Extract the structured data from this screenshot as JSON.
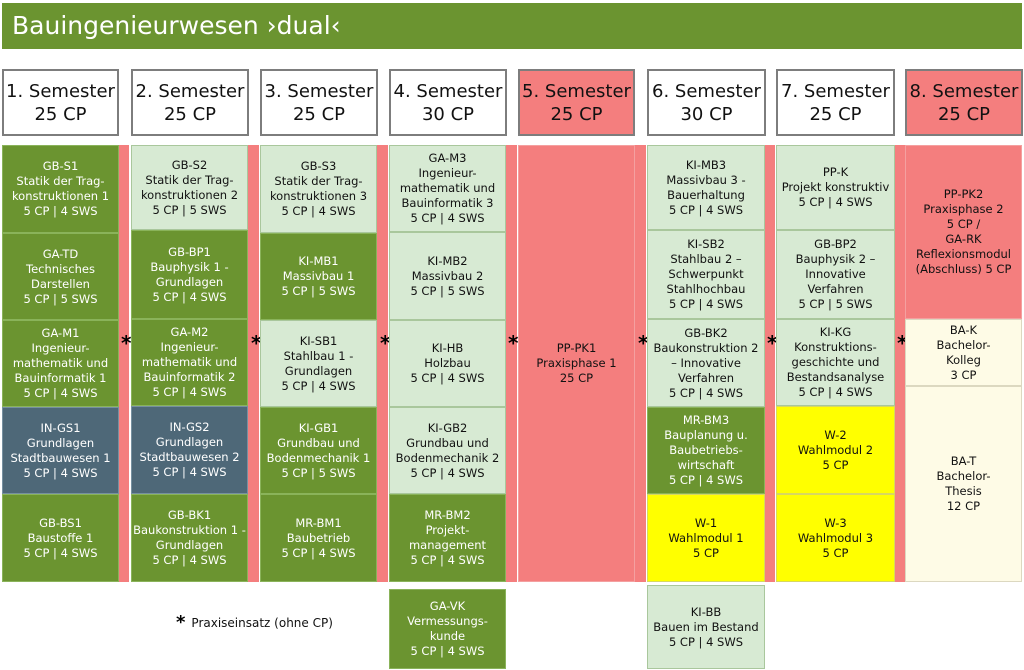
{
  "title": "Bauingenieurwesen ›dual‹",
  "colors": {
    "header_green": "#6b9430",
    "dark_green": "#6b9430",
    "light_green": "#d7ead3",
    "slate": "#4e6878",
    "salmon": "#f47e7e",
    "yellow": "#ffff00",
    "cream": "#fefbe6"
  },
  "semesters": [
    {
      "label": "1. Semester",
      "cp": "25 CP",
      "highlight": false
    },
    {
      "label": "2. Semester",
      "cp": "25 CP",
      "highlight": false
    },
    {
      "label": "3. Semester",
      "cp": "25 CP",
      "highlight": false
    },
    {
      "label": "4. Semester",
      "cp": "30 CP",
      "highlight": false
    },
    {
      "label": "5. Semester",
      "cp": "25 CP",
      "highlight": true
    },
    {
      "label": "6. Semester",
      "cp": "30 CP",
      "highlight": false
    },
    {
      "label": "7. Semester",
      "cp": "25 CP",
      "highlight": false
    },
    {
      "label": "8. Semester",
      "cp": "25 CP",
      "highlight": true
    }
  ],
  "columns": [
    [
      {
        "style": "dark",
        "lines": [
          "GB-S1",
          "Statik der Trag-",
          "konstruktionen 1",
          "5 CP | 4 SWS"
        ]
      },
      {
        "style": "dark",
        "lines": [
          "GA-TD",
          "Technisches",
          "Darstellen",
          "5 CP | 5 SWS"
        ]
      },
      {
        "style": "dark",
        "lines": [
          "GA-M1",
          "Ingenieur-",
          "mathematik und",
          "Bauinformatik 1",
          "5 CP | 4 SWS"
        ]
      },
      {
        "style": "slate",
        "lines": [
          "IN-GS1",
          "Grundlagen",
          "Stadtbauwesen 1",
          "5 CP | 4 SWS"
        ]
      },
      {
        "style": "dark",
        "lines": [
          "GB-BS1",
          "Baustoffe 1",
          "5 CP | 4 SWS"
        ]
      }
    ],
    [
      {
        "style": "light",
        "lines": [
          "GB-S2",
          "Statik der Trag-",
          "konstruktionen 2",
          "5 CP | 5 SWS"
        ]
      },
      {
        "style": "dark",
        "lines": [
          "GB-BP1",
          "Bauphysik 1 -",
          "Grundlagen",
          "5 CP | 4 SWS"
        ]
      },
      {
        "style": "dark",
        "lines": [
          "GA-M2",
          "Ingenieur-",
          "mathematik und",
          "Bauinformatik 2",
          "5 CP | 4 SWS"
        ]
      },
      {
        "style": "slate",
        "lines": [
          "IN-GS2",
          "Grundlagen",
          "Stadtbauwesen 2",
          "5 CP | 4 SWS"
        ]
      },
      {
        "style": "dark",
        "lines": [
          "GB-BK1",
          "Baukonstruktion 1 -",
          "Grundlagen",
          "5 CP | 4 SWS"
        ]
      }
    ],
    [
      {
        "style": "light",
        "lines": [
          "GB-S3",
          "Statik der Trag-",
          "konstruktionen 3",
          "5 CP | 4 SWS"
        ]
      },
      {
        "style": "dark",
        "lines": [
          "KI-MB1",
          "Massivbau 1",
          "5 CP | 5 SWS"
        ]
      },
      {
        "style": "light",
        "lines": [
          "KI-SB1",
          "Stahlbau 1 -",
          "Grundlagen",
          "5 CP | 4 SWS"
        ]
      },
      {
        "style": "dark",
        "lines": [
          "KI-GB1",
          "Grundbau und",
          "Bodenmechanik 1",
          "5 CP | 5 SWS"
        ]
      },
      {
        "style": "dark",
        "lines": [
          "MR-BM1",
          "Baubetrieb",
          "5 CP | 4 SWS"
        ]
      }
    ],
    [
      {
        "style": "light",
        "lines": [
          "GA-M3",
          "Ingenieur-",
          "mathematik und",
          "Bauinformatik 3",
          "5 CP | 4 SWS"
        ]
      },
      {
        "style": "light",
        "lines": [
          "KI-MB2",
          "Massivbau 2",
          "5 CP | 5 SWS"
        ]
      },
      {
        "style": "light",
        "lines": [
          "KI-HB",
          "Holzbau",
          "5 CP | 4 SWS"
        ]
      },
      {
        "style": "light",
        "lines": [
          "KI-GB2",
          "Grundbau und",
          "Bodenmechanik 2",
          "5 CP | 4 SWS"
        ]
      },
      {
        "style": "dark",
        "lines": [
          "MR-BM2",
          "Projekt-",
          "management",
          "5 CP | 4 SWS"
        ]
      },
      {
        "style": "dark",
        "lines": [
          "GA-VK",
          "Vermessungs-",
          "kunde",
          "5 CP | 4 SWS"
        ]
      }
    ],
    [
      {
        "style": "salmon",
        "lines": [
          "PP-PK1",
          "Praxisphase 1",
          "25 CP"
        ]
      }
    ],
    [
      {
        "style": "light",
        "lines": [
          "KI-MB3",
          "Massivbau 3 -",
          "Bauerhaltung",
          "5 CP | 4 SWS"
        ]
      },
      {
        "style": "light",
        "lines": [
          "KI-SB2",
          "Stahlbau 2 –",
          "Schwerpunkt",
          "Stahlhochbau",
          "5 CP | 4 SWS"
        ]
      },
      {
        "style": "light",
        "lines": [
          "GB-BK2",
          "Baukonstruktion 2",
          "– Innovative",
          "Verfahren",
          "5 CP | 4 SWS"
        ]
      },
      {
        "style": "dark",
        "lines": [
          "MR-BM3",
          "Bauplanung u.",
          "Baubetriebs-",
          "wirtschaft",
          "5 CP | 4 SWS"
        ]
      },
      {
        "style": "yellow",
        "lines": [
          "W-1",
          "Wahlmodul 1",
          "5 CP"
        ]
      },
      {
        "style": "light",
        "lines": [
          "KI-BB",
          "Bauen im Bestand",
          "5 CP | 4 SWS"
        ]
      }
    ],
    [
      {
        "style": "light",
        "lines": [
          "PP-K",
          "Projekt konstruktiv",
          "5 CP | 4 SWS"
        ]
      },
      {
        "style": "light",
        "lines": [
          "GB-BP2",
          "Bauphysik 2 –",
          "Innovative",
          "Verfahren",
          "5 CP | 5 SWS"
        ]
      },
      {
        "style": "light",
        "lines": [
          "KI-KG",
          "Konstruktions-",
          "geschichte und",
          "Bestandsanalyse",
          "5 CP | 4 SWS"
        ]
      },
      {
        "style": "yellow",
        "lines": [
          "W-2",
          "Wahlmodul 2",
          "5 CP"
        ]
      },
      {
        "style": "yellow",
        "lines": [
          "W-3",
          "Wahlmodul 3",
          "5 CP"
        ]
      }
    ],
    [
      {
        "style": "salmon",
        "lines": [
          "PP-PK2",
          "Praxisphase 2",
          "5 CP /",
          "GA-RK",
          "Reflexionsmodul",
          "(Abschluss) 5 CP"
        ]
      },
      {
        "style": "cream",
        "lines": [
          "BA-K",
          "Bachelor-",
          "Kolleg",
          "3 CP"
        ]
      },
      {
        "style": "cream",
        "lines": [
          "BA-T",
          "Bachelor-",
          "Thesis",
          "12 CP"
        ]
      }
    ]
  ],
  "star_symbol": "*",
  "legend": {
    "symbol": "*",
    "text": "Praxiseinsatz (ohne CP)"
  }
}
